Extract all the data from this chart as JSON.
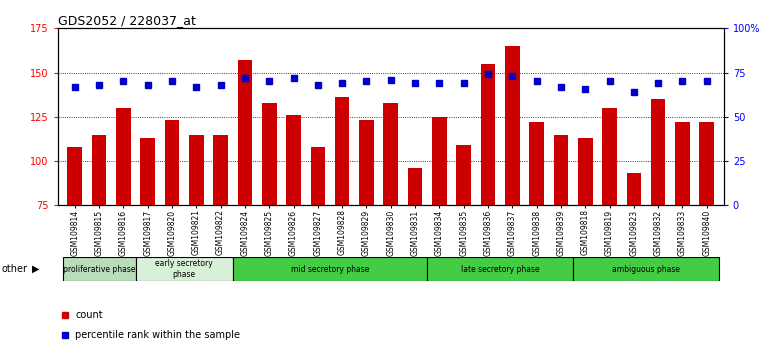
{
  "title": "GDS2052 / 228037_at",
  "samples": [
    "GSM109814",
    "GSM109815",
    "GSM109816",
    "GSM109817",
    "GSM109820",
    "GSM109821",
    "GSM109822",
    "GSM109824",
    "GSM109825",
    "GSM109826",
    "GSM109827",
    "GSM109828",
    "GSM109829",
    "GSM109830",
    "GSM109831",
    "GSM109834",
    "GSM109835",
    "GSM109836",
    "GSM109837",
    "GSM109838",
    "GSM109839",
    "GSM109818",
    "GSM109819",
    "GSM109823",
    "GSM109832",
    "GSM109833",
    "GSM109840"
  ],
  "counts": [
    108,
    115,
    130,
    113,
    123,
    115,
    115,
    157,
    133,
    126,
    108,
    136,
    123,
    133,
    96,
    125,
    109,
    155,
    165,
    122,
    115,
    113,
    130,
    93,
    135,
    122,
    122
  ],
  "percentiles": [
    67,
    68,
    70,
    68,
    70,
    67,
    68,
    72,
    70,
    72,
    68,
    69,
    70,
    71,
    69,
    69,
    69,
    74,
    73,
    70,
    67,
    66,
    70,
    64,
    69,
    70,
    70
  ],
  "ylim_left": [
    75,
    175
  ],
  "ylim_right": [
    0,
    100
  ],
  "yticks_left": [
    75,
    100,
    125,
    150,
    175
  ],
  "yticks_right": [
    0,
    25,
    50,
    75,
    100
  ],
  "ytick_labels_right": [
    "0",
    "25",
    "50",
    "75",
    "100%"
  ],
  "bar_color": "#cc0000",
  "dot_color": "#0000cc",
  "bg_color": "#ffffff",
  "phases": [
    {
      "label": "proliferative phase",
      "start": 0,
      "end": 3,
      "color": "#b0d8b0"
    },
    {
      "label": "early secretory\nphase",
      "start": 3,
      "end": 7,
      "color": "#d8efd8"
    },
    {
      "label": "mid secretory phase",
      "start": 7,
      "end": 15,
      "color": "#44cc44"
    },
    {
      "label": "late secretory phase",
      "start": 15,
      "end": 21,
      "color": "#44cc44"
    },
    {
      "label": "ambiguous phase",
      "start": 21,
      "end": 27,
      "color": "#44cc44"
    }
  ],
  "other_label": "other",
  "legend_count_label": "count",
  "legend_pct_label": "percentile rank within the sample"
}
